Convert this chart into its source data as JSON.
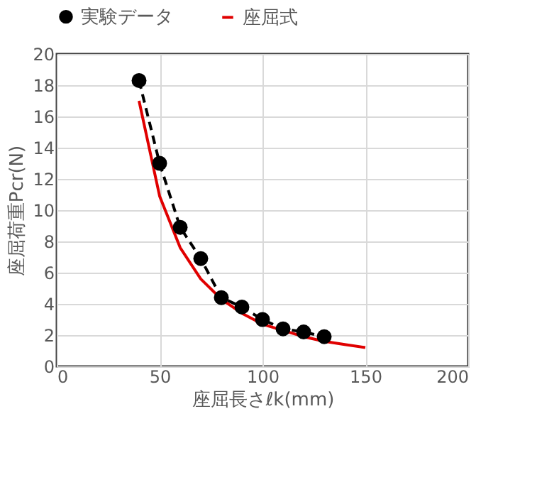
{
  "chart_data": {
    "type": "line",
    "xlabel": "座屈長さℓk(mm)",
    "ylabel": "座屈荷重Pcr(N)",
    "xlim": [
      0,
      200
    ],
    "xticks": [
      0,
      50,
      100,
      150,
      200
    ],
    "ylim": [
      0,
      20
    ],
    "yticks": [
      0,
      2,
      4,
      6,
      8,
      10,
      12,
      14,
      16,
      18,
      20
    ],
    "grid": true,
    "legend": "top",
    "series": [
      {
        "name": "実験データ",
        "color": "#000000",
        "marker": "circle",
        "line_style": "dashed",
        "x": [
          40,
          50,
          60,
          70,
          80,
          90,
          100,
          110,
          120,
          130
        ],
        "values": [
          18.3,
          13.0,
          8.9,
          6.9,
          4.4,
          3.8,
          3.0,
          2.4,
          2.2,
          1.9
        ]
      },
      {
        "name": "座屈式",
        "color": "#e00000",
        "marker": "none",
        "line_style": "solid",
        "x": [
          40,
          50,
          60,
          70,
          80,
          90,
          100,
          110,
          120,
          130,
          140,
          150
        ],
        "values": [
          17.0,
          10.9,
          7.6,
          5.6,
          4.3,
          3.4,
          2.7,
          2.3,
          1.9,
          1.6,
          1.4,
          1.2
        ]
      }
    ]
  }
}
